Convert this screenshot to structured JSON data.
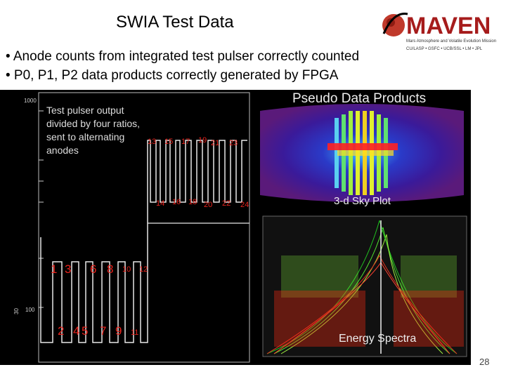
{
  "slide": {
    "title": "SWIA Test Data",
    "bullets": [
      "• Anode counts from integrated test pulser correctly counted",
      "• P0, P1, P2 data products correctly generated by FPGA"
    ],
    "page_number": "28"
  },
  "logo": {
    "name": "MAVEN",
    "tagline": "Mars Atmosphere and Volatile Evolution Mission",
    "partners": "CU/LASP • GSFC • UCB/SSL • LM • JPL"
  },
  "pulser_plot": {
    "caption_lines": [
      "Test pulser output",
      "divided by four ratios,",
      "sent to alternating",
      "anodes"
    ],
    "y_tick_top": "1000",
    "y_tick_mid": "100",
    "y_axis_label": "30",
    "upper_labels": [
      "13",
      "15",
      "17",
      "19",
      "21",
      "23"
    ],
    "lower_labels": [
      "14",
      "16",
      "18",
      "20",
      "22",
      "24"
    ],
    "big_upper_labels": [
      "1",
      "3",
      "6",
      "8",
      "10",
      "12"
    ],
    "big_lower_labels": [
      "2",
      "4",
      "5",
      "7",
      "9",
      "11"
    ]
  },
  "sky_plot": {
    "heading": "Pseudo Data Products",
    "label": "3-d Sky Plot"
  },
  "energy_plot": {
    "label": "Energy Spectra"
  }
}
